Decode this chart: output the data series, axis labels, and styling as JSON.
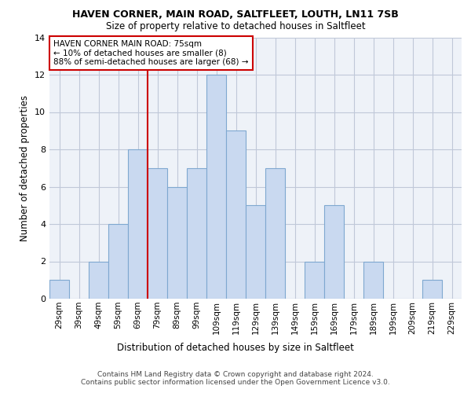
{
  "title1": "HAVEN CORNER, MAIN ROAD, SALTFLEET, LOUTH, LN11 7SB",
  "title2": "Size of property relative to detached houses in Saltfleet",
  "xlabel": "Distribution of detached houses by size in Saltfleet",
  "ylabel": "Number of detached properties",
  "footnote1": "Contains HM Land Registry data © Crown copyright and database right 2024.",
  "footnote2": "Contains public sector information licensed under the Open Government Licence v3.0.",
  "annotation_line1": "HAVEN CORNER MAIN ROAD: 75sqm",
  "annotation_line2": "← 10% of detached houses are smaller (8)",
  "annotation_line3": "88% of semi-detached houses are larger (68) →",
  "bar_labels": [
    "29sqm",
    "39sqm",
    "49sqm",
    "59sqm",
    "69sqm",
    "79sqm",
    "89sqm",
    "99sqm",
    "109sqm",
    "119sqm",
    "129sqm",
    "139sqm",
    "149sqm",
    "159sqm",
    "169sqm",
    "179sqm",
    "189sqm",
    "199sqm",
    "209sqm",
    "219sqm",
    "229sqm"
  ],
  "bar_values": [
    1,
    0,
    2,
    4,
    8,
    7,
    6,
    7,
    12,
    9,
    5,
    7,
    0,
    2,
    5,
    0,
    2,
    0,
    0,
    1,
    0
  ],
  "bar_color": "#c9d9f0",
  "bar_edge_color": "#7fa8d0",
  "vline_color": "#cc0000",
  "annotation_box_color": "#ffffff",
  "annotation_box_edge_color": "#cc0000",
  "ylim": [
    0,
    14
  ],
  "yticks": [
    0,
    2,
    4,
    6,
    8,
    10,
    12,
    14
  ],
  "grid_color": "#c0c8d8",
  "bg_color": "#eef2f8"
}
